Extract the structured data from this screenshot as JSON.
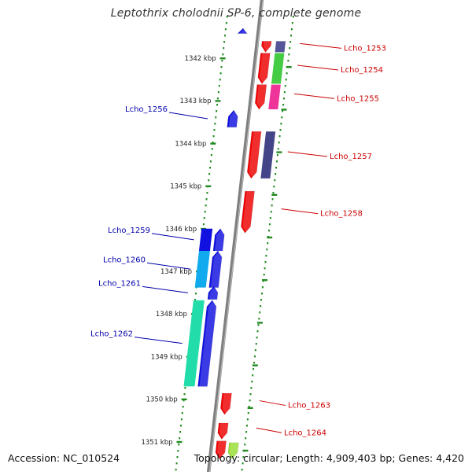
{
  "title": "Leptothrix cholodnii SP-6, complete genome",
  "footer": {
    "accession": "Accession: NC_010524",
    "summary": "Topology: circular; Length: 4,909,403 bp; Genes: 4,420"
  },
  "colors": {
    "backbone": "#7f7f7f",
    "tick": "#228b22",
    "forward_label": "#cc0000",
    "reverse_label": "#0000aa"
  },
  "scale_ticks": [
    {
      "kbp": 1342,
      "label": "1342 kbp"
    },
    {
      "kbp": 1343,
      "label": "1343 kbp"
    },
    {
      "kbp": 1344,
      "label": "1344 kbp"
    },
    {
      "kbp": 1345,
      "label": "1345 kbp"
    },
    {
      "kbp": 1346,
      "label": "1346 kbp"
    },
    {
      "kbp": 1347,
      "label": "1347 kbp"
    },
    {
      "kbp": 1348,
      "label": "1348 kbp"
    },
    {
      "kbp": 1349,
      "label": "1349 kbp"
    },
    {
      "kbp": 1350,
      "label": "1350 kbp"
    },
    {
      "kbp": 1351,
      "label": "1351 kbp"
    }
  ],
  "genes": [
    {
      "name": "Lcho_1253",
      "strand": "+",
      "labeled": true,
      "start": 1341.6,
      "end": 1341.86,
      "colors": [
        "#ee0000"
      ]
    },
    {
      "name": "Lcho_1254",
      "strand": "+",
      "labeled": true,
      "start": 1341.88,
      "end": 1342.6,
      "colors": [
        "#ee0000"
      ]
    },
    {
      "name": "Lcho_1255",
      "strand": "+",
      "labeled": true,
      "start": 1342.62,
      "end": 1343.2,
      "colors": [
        "#ee0000"
      ]
    },
    {
      "name": "Lcho_1257",
      "strand": "+",
      "labeled": true,
      "start": 1343.72,
      "end": 1344.82,
      "colors": [
        "#ee0000"
      ]
    },
    {
      "name": "Lcho_1258",
      "strand": "+",
      "labeled": true,
      "start": 1345.12,
      "end": 1346.1,
      "colors": [
        "#ee0000"
      ]
    },
    {
      "name": "Lcho_1263",
      "strand": "+",
      "labeled": true,
      "start": 1349.86,
      "end": 1350.36,
      "colors": [
        "#ee0000"
      ]
    },
    {
      "name": "Lcho_1264",
      "strand": "+",
      "labeled": true,
      "start": 1350.56,
      "end": 1350.94,
      "colors": [
        "#ee0000"
      ]
    },
    {
      "name": "",
      "strand": "+",
      "labeled": false,
      "start": 1350.98,
      "end": 1351.4,
      "colors": [
        "#ee0000"
      ]
    },
    {
      "name": "",
      "strand": "+",
      "labeled": false,
      "start": 1351.02,
      "end": 1351.4,
      "colors": [
        "#99dd33"
      ],
      "lane": 2
    },
    {
      "name": "Lcho_1256",
      "strand": "-",
      "labeled": true,
      "start": 1343.22,
      "end": 1343.62,
      "colors": [
        "#1010e0"
      ]
    },
    {
      "name": "Lcho_1259",
      "strand": "-",
      "labeled": true,
      "start": 1346.0,
      "end": 1346.52,
      "colors": [
        "#1010e0"
      ]
    },
    {
      "name": "Lcho_1260",
      "strand": "-",
      "labeled": true,
      "start": 1346.52,
      "end": 1347.38,
      "colors": [
        "#1010e0"
      ]
    },
    {
      "name": "Lcho_1261",
      "strand": "-",
      "labeled": true,
      "start": 1347.35,
      "end": 1347.66,
      "colors": [
        "#1010e0"
      ]
    },
    {
      "name": "Lcho_1262",
      "strand": "-",
      "labeled": true,
      "start": 1347.68,
      "end": 1349.7,
      "colors": [
        "#1010e0"
      ]
    },
    {
      "name": "",
      "strand": "-",
      "labeled": false,
      "start": 1341.3,
      "end": 1341.42,
      "colors": [
        "#1010e0"
      ]
    }
  ],
  "feature_blocks": [
    {
      "gene": "Lcho_1253",
      "color": "#555599"
    },
    {
      "gene": "Lcho_1254",
      "color": "#44cc44"
    },
    {
      "gene": "Lcho_1255",
      "color": "#ee3399"
    },
    {
      "gene": "Lcho_1257",
      "color": "#444488"
    },
    {
      "gene": "Lcho_1259",
      "color": "#1010e0"
    },
    {
      "gene": "Lcho_1260",
      "color": "#11aaee"
    },
    {
      "gene": "Lcho_1262",
      "color": "#22ddaa"
    }
  ]
}
